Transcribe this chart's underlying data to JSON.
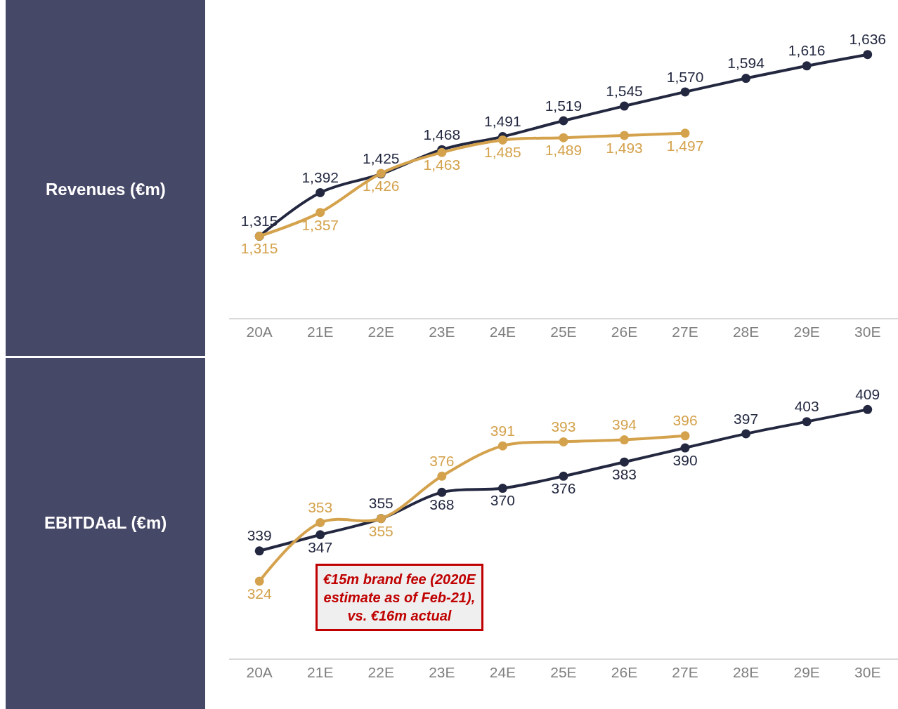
{
  "chart_data": [
    {
      "type": "line",
      "ylabel": "Revenues (€m)",
      "categories": [
        "20A",
        "21E",
        "22E",
        "23E",
        "24E",
        "25E",
        "26E",
        "27E",
        "28E",
        "29E",
        "30E"
      ],
      "series": [
        {
          "color": "#232840",
          "values": [
            1315,
            1392,
            1425,
            1468,
            1491,
            1519,
            1545,
            1570,
            1594,
            1616,
            1636
          ],
          "value_labels": [
            "1,315",
            "1,392",
            "1,425",
            "1,468",
            "1,491",
            "1,519",
            "1,545",
            "1,570",
            "1,594",
            "1,616",
            "1,636"
          ]
        },
        {
          "color": "#d4a24c",
          "values": [
            1315,
            1357,
            1426,
            1463,
            1485,
            1489,
            1493,
            1497,
            null,
            null,
            null
          ],
          "value_labels": [
            "1,315",
            "1,357",
            "1,426",
            "1,463",
            "1,485",
            "1,489",
            "1,493",
            "1,497",
            null,
            null,
            null
          ]
        }
      ],
      "tick_labels": "x",
      "marker": "circle",
      "line_style": "solid"
    },
    {
      "type": "line",
      "ylabel": "EBITDAaL (€m)",
      "categories": [
        "20A",
        "21E",
        "22E",
        "23E",
        "24E",
        "25E",
        "26E",
        "27E",
        "28E",
        "29E",
        "30E"
      ],
      "series": [
        {
          "color": "#232840",
          "values": [
            339,
            347,
            355,
            368,
            370,
            376,
            383,
            390,
            397,
            403,
            409
          ]
        },
        {
          "color": "#d4a24c",
          "values": [
            324,
            353,
            355,
            376,
            391,
            393,
            394,
            396,
            null,
            null,
            null
          ]
        }
      ],
      "tick_labels": "x",
      "data_labels": true,
      "marker": "circle",
      "line_style": "solid",
      "annotations": [
        "€15m brand fee (2020E estimate as of Feb-21), vs. €16m actual"
      ]
    }
  ]
}
